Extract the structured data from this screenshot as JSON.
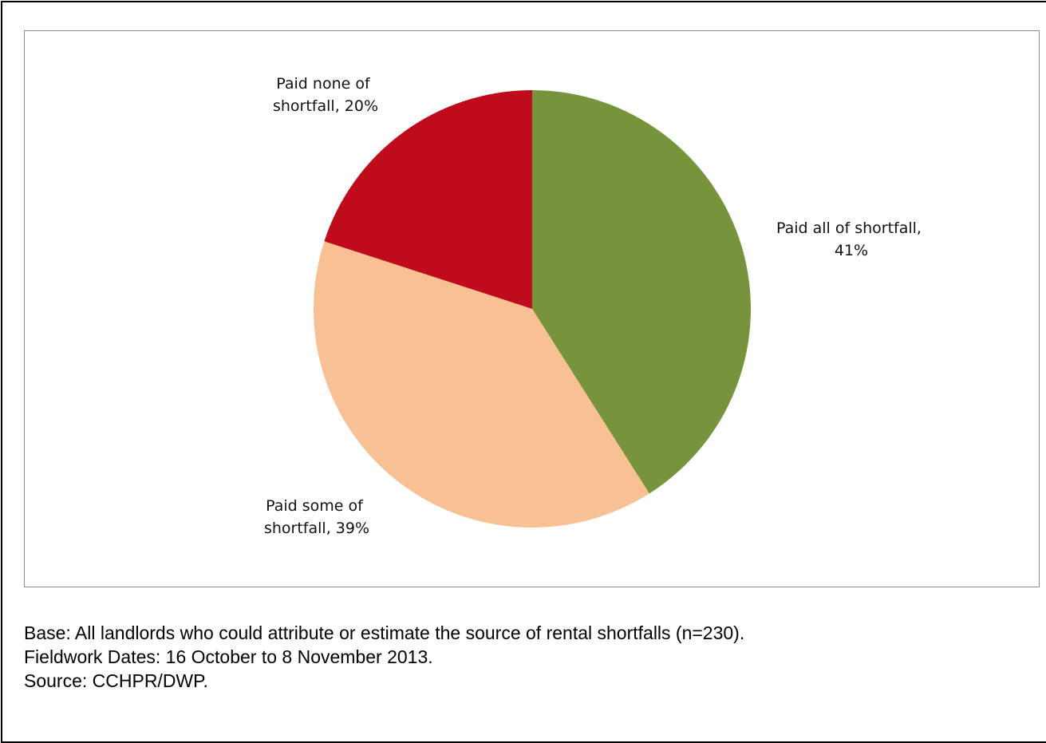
{
  "chart_data": {
    "type": "pie",
    "slices": [
      {
        "label_lines": [
          "Paid all of shortfall,",
          "41%"
        ],
        "category": "Paid all of shortfall",
        "value": 41,
        "color": "#77933c"
      },
      {
        "label_lines": [
          "Paid some of",
          "shortfall, 39%"
        ],
        "category": "Paid some of shortfall",
        "value": 39,
        "color": "#f8c194"
      },
      {
        "label_lines": [
          "Paid none of",
          "shortfall, 20%"
        ],
        "category": "Paid none of shortfall",
        "value": 20,
        "color": "#bf0b1b"
      }
    ],
    "start": "12 o'clock",
    "direction": "clockwise",
    "legend": "none (data labels)"
  },
  "notes": {
    "base": "Base: All landlords who could attribute or estimate the source of rental shortfalls (n=230).",
    "fieldwork": "Fieldwork Dates: 16 October to 8 November 2013.",
    "source": "Source: CCHPR/DWP."
  }
}
